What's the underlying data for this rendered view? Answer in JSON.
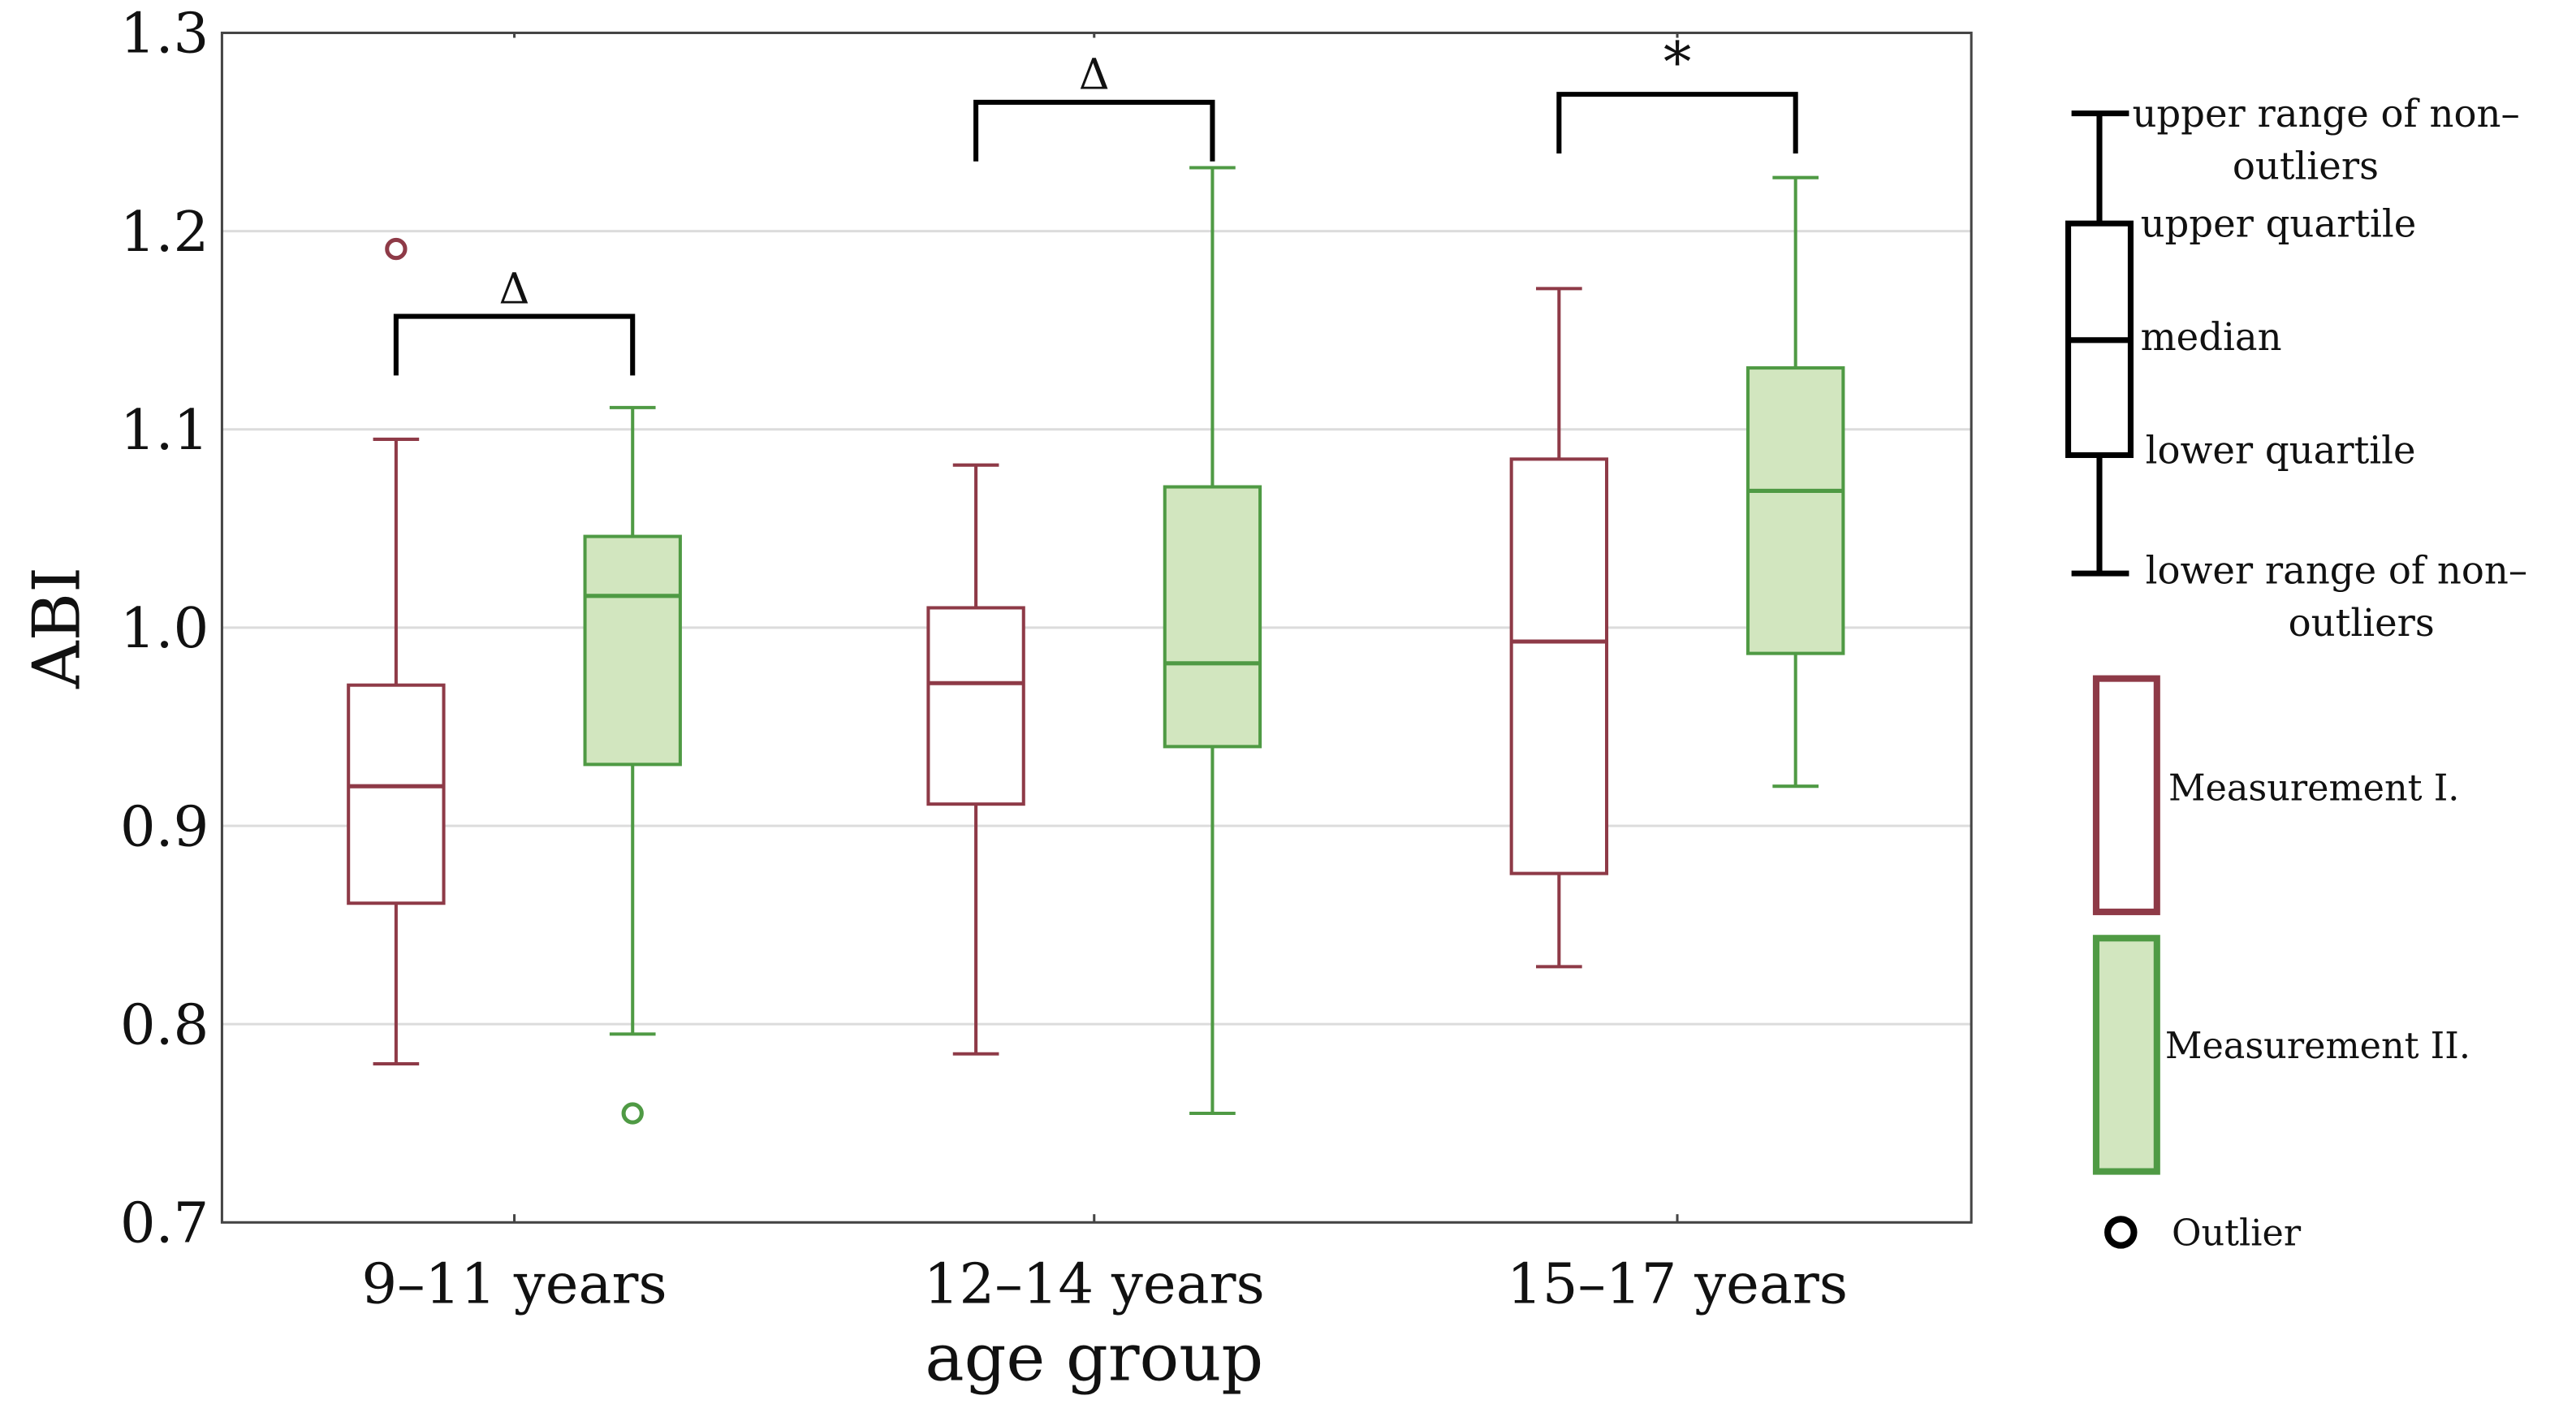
{
  "chart_data": {
    "type": "boxplot",
    "title": "",
    "xlabel": "age group",
    "ylabel": "ABI",
    "ylim": [
      0.7,
      1.3
    ],
    "yticks": [
      "0.7",
      "0.8",
      "0.9",
      "1.0",
      "1.1",
      "1.2",
      "1.3"
    ],
    "grid": true,
    "categories": [
      "9–11 years",
      "12–14 years",
      "15–17 years"
    ],
    "series": [
      {
        "name": "Measurement I.",
        "stroke": "#8e3a47",
        "fill": "#ffffff",
        "boxes": [
          {
            "low": 0.78,
            "q1": 0.861,
            "median": 0.92,
            "q3": 0.971,
            "high": 1.095,
            "outliers": [
              1.191
            ]
          },
          {
            "low": 0.785,
            "q1": 0.911,
            "median": 0.972,
            "q3": 1.01,
            "high": 1.082,
            "outliers": []
          },
          {
            "low": 0.829,
            "q1": 0.876,
            "median": 0.993,
            "q3": 1.085,
            "high": 1.171,
            "outliers": []
          }
        ]
      },
      {
        "name": "Measurement II.",
        "stroke": "#4f9a44",
        "fill": "#d2e6bf",
        "boxes": [
          {
            "low": 0.795,
            "q1": 0.931,
            "median": 1.016,
            "q3": 1.046,
            "high": 1.111,
            "outliers": [
              0.755
            ]
          },
          {
            "low": 0.755,
            "q1": 0.94,
            "median": 0.982,
            "q3": 1.071,
            "high": 1.232,
            "outliers": []
          },
          {
            "low": 0.92,
            "q1": 0.987,
            "median": 1.069,
            "q3": 1.131,
            "high": 1.227,
            "outliers": []
          }
        ]
      }
    ],
    "annotations": [
      {
        "category": "9–11 years",
        "symbol": "Δ",
        "level": 1.157
      },
      {
        "category": "12–14 years",
        "symbol": "Δ",
        "level": 1.265
      },
      {
        "category": "15–17 years",
        "symbol": "*",
        "level": 1.269
      }
    ],
    "legend": {
      "placement": "right",
      "schematic": {
        "upper_range": "upper range of non–",
        "upper_range_2": "outliers",
        "upper_quartile": "upper quartile",
        "median": "median",
        "lower_quartile": "lower quartile",
        "lower_range": "lower range of non–",
        "lower_range_2": "outliers"
      },
      "measurement1": "Measurement I.",
      "measurement2": "Measurement II.",
      "outlier": "Outlier"
    }
  }
}
